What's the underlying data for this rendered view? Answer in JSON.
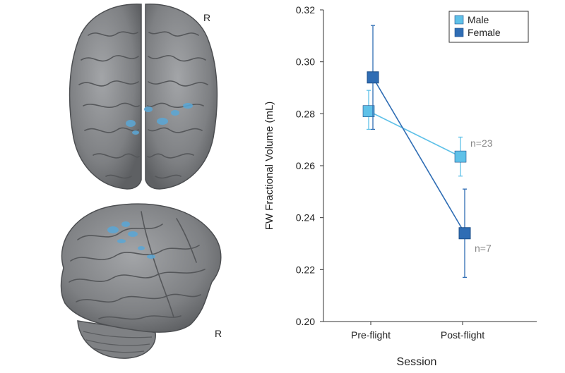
{
  "brain_panel": {
    "top_view_label": "R",
    "side_view_label": "R"
  },
  "colors": {
    "male": "#5fc1e8",
    "female": "#2f6db4",
    "brain": "#8a8c8f",
    "highlight": "#5aa7d6"
  },
  "chart_data": {
    "type": "line",
    "title": "",
    "xlabel": "Session",
    "ylabel": "FW Fractional Volume (mL)",
    "categories": [
      "Pre-flight",
      "Post-flight"
    ],
    "ylim": [
      0.2,
      0.32
    ],
    "yticks": [
      "0.20",
      "0.22",
      "0.24",
      "0.26",
      "0.28",
      "0.30",
      "0.32"
    ],
    "legend_position": "top-right",
    "grid": false,
    "series": [
      {
        "name": "Male",
        "values": [
          0.281,
          0.2635
        ],
        "error_low": [
          0.274,
          0.256
        ],
        "error_high": [
          0.289,
          0.271
        ],
        "n_label": "n=23"
      },
      {
        "name": "Female",
        "values": [
          0.294,
          0.234
        ],
        "error_low": [
          0.274,
          0.217
        ],
        "error_high": [
          0.314,
          0.251
        ],
        "n_label": "n=7"
      }
    ]
  }
}
